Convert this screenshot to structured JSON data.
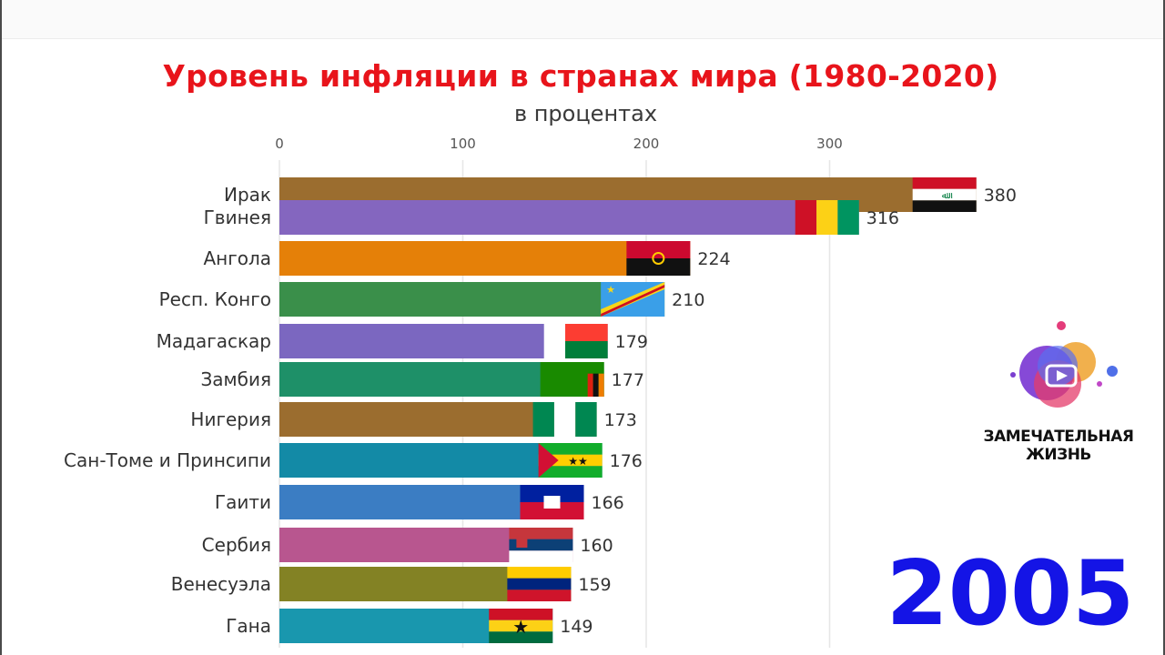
{
  "title": "Уровень инфляции в странах мира (1980-2020)",
  "subtitle": "в процентах",
  "year": "2005",
  "brand": "ЗАМЕЧАТЕЛЬНАЯ ЖИЗНЬ",
  "chart_data": {
    "type": "bar",
    "orientation": "horizontal",
    "title": "Уровень инфляции в странах мира (1980-2020)",
    "subtitle": "в процентах",
    "xlim": [
      0,
      380
    ],
    "xticks": [
      0,
      100,
      200,
      300
    ],
    "grid": true,
    "categories": [
      "Ирак",
      "Гвинея",
      "Ангола",
      "Респ. Конго",
      "Мадагаскар",
      "Замбия",
      "Нигерия",
      "Сан-Томе и Принсипи",
      "Гаити",
      "Сербия",
      "Венесуэла",
      "Гана"
    ],
    "values": [
      380,
      316,
      224,
      210,
      179,
      177,
      173,
      176,
      166,
      160,
      159,
      149
    ],
    "labels": [
      "380",
      "316",
      "224",
      "210",
      "179",
      "177",
      "173",
      "176",
      "166",
      "160",
      "159",
      "149"
    ],
    "colors": [
      "#9b6d2f",
      "#8466bf",
      "#e58008",
      "#3a8f4a",
      "#7b67c0",
      "#1e9068",
      "#9b6d2f",
      "#138aa6",
      "#3b7dc3",
      "#b8568f",
      "#838224",
      "#1997ae"
    ],
    "flags": [
      "iraq",
      "guinea",
      "angola",
      "dr-congo",
      "madagascar",
      "zambia",
      "nigeria",
      "sao-tome",
      "haiti",
      "serbia",
      "venezuela",
      "ghana"
    ]
  }
}
